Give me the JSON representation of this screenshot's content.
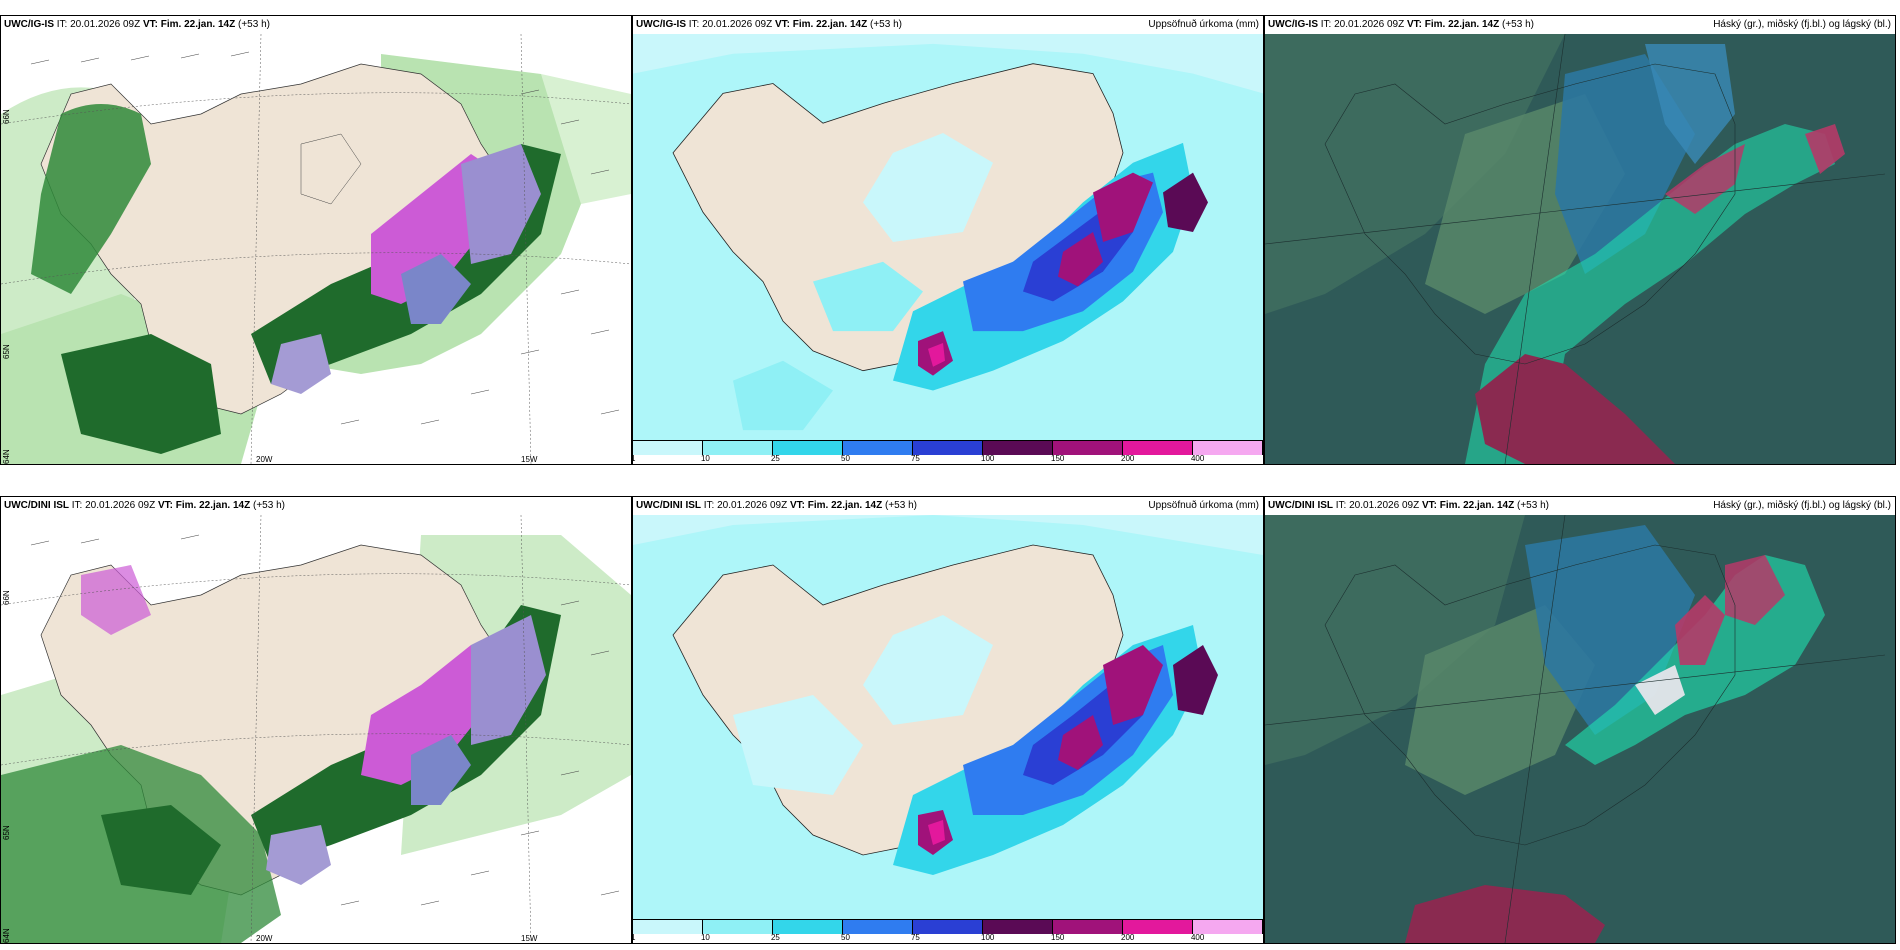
{
  "rows": [
    {
      "header": {
        "model": "UWC/IG-IS",
        "it_label": "IT:",
        "it": "20.01.2026 09Z",
        "vt_label": "VT:",
        "vt": "Fim. 22.jan. 14Z",
        "lead": "(+53 h)"
      },
      "precip_title": "Uppsöfnuð úrkoma (mm)",
      "cloud_title": "Háský (gr.), miðský (fj.bl.) og lágský (bl.)"
    },
    {
      "header": {
        "model": "UWC/DINI ISL",
        "it_label": "IT:",
        "it": "20.01.2026 09Z",
        "vt_label": "VT:",
        "vt": "Fim. 22.jan. 14Z",
        "lead": "(+53 h)"
      },
      "precip_title": "Uppsöfnuð úrkoma (mm)",
      "cloud_title": "Háský (gr.), miðský (fj.bl.) og lágský (bl.)"
    }
  ],
  "legend": {
    "colors": [
      "#c9f7fb",
      "#8ff0f5",
      "#33d6ea",
      "#2f7cf0",
      "#2a3fd4",
      "#5a0a55",
      "#a0127a",
      "#e3189c",
      "#f5a8f0"
    ],
    "labels": [
      "1",
      "10",
      "25",
      "50",
      "75",
      "100",
      "150",
      "200",
      "400"
    ]
  },
  "wind_panel_labels": {
    "lat_66": "66N",
    "lat_65": "65N",
    "lat_64": "64N",
    "lon_20": "20W",
    "lon_15": "15W"
  },
  "colors": {
    "land": "#efe4d6",
    "sea_precip": "#aef6f9",
    "cloud_bg": "#2f5a58"
  }
}
